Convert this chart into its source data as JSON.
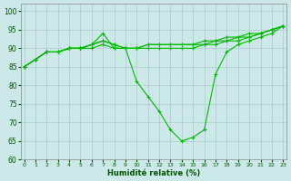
{
  "title": "",
  "xlabel": "Humidité relative (%)",
  "ylabel": "",
  "background_color": "#cce8e8",
  "grid_color": "#aacccc",
  "line_color": "#00bb00",
  "marker_color": "#00bb00",
  "ylim": [
    60,
    102
  ],
  "xlim": [
    -0.3,
    23.3
  ],
  "yticks": [
    60,
    65,
    70,
    75,
    80,
    85,
    90,
    95,
    100
  ],
  "xticks": [
    0,
    1,
    2,
    3,
    4,
    5,
    6,
    7,
    8,
    9,
    10,
    11,
    12,
    13,
    14,
    15,
    16,
    17,
    18,
    19,
    20,
    21,
    22,
    23
  ],
  "series": [
    [
      85,
      87,
      89,
      89,
      90,
      90,
      90,
      91,
      90,
      90,
      90,
      90,
      90,
      90,
      90,
      90,
      91,
      91,
      92,
      92,
      93,
      94,
      95,
      96
    ],
    [
      85,
      87,
      89,
      89,
      90,
      90,
      91,
      92,
      91,
      90,
      90,
      91,
      91,
      91,
      91,
      91,
      91,
      92,
      92,
      93,
      93,
      94,
      95,
      96
    ],
    [
      85,
      87,
      89,
      89,
      90,
      90,
      91,
      92,
      91,
      90,
      90,
      91,
      91,
      91,
      91,
      91,
      92,
      92,
      93,
      93,
      94,
      94,
      95,
      96
    ],
    [
      85,
      87,
      89,
      89,
      90,
      90,
      91,
      94,
      90,
      90,
      81,
      77,
      73,
      68,
      65,
      66,
      68,
      83,
      89,
      91,
      92,
      93,
      94,
      96
    ]
  ]
}
